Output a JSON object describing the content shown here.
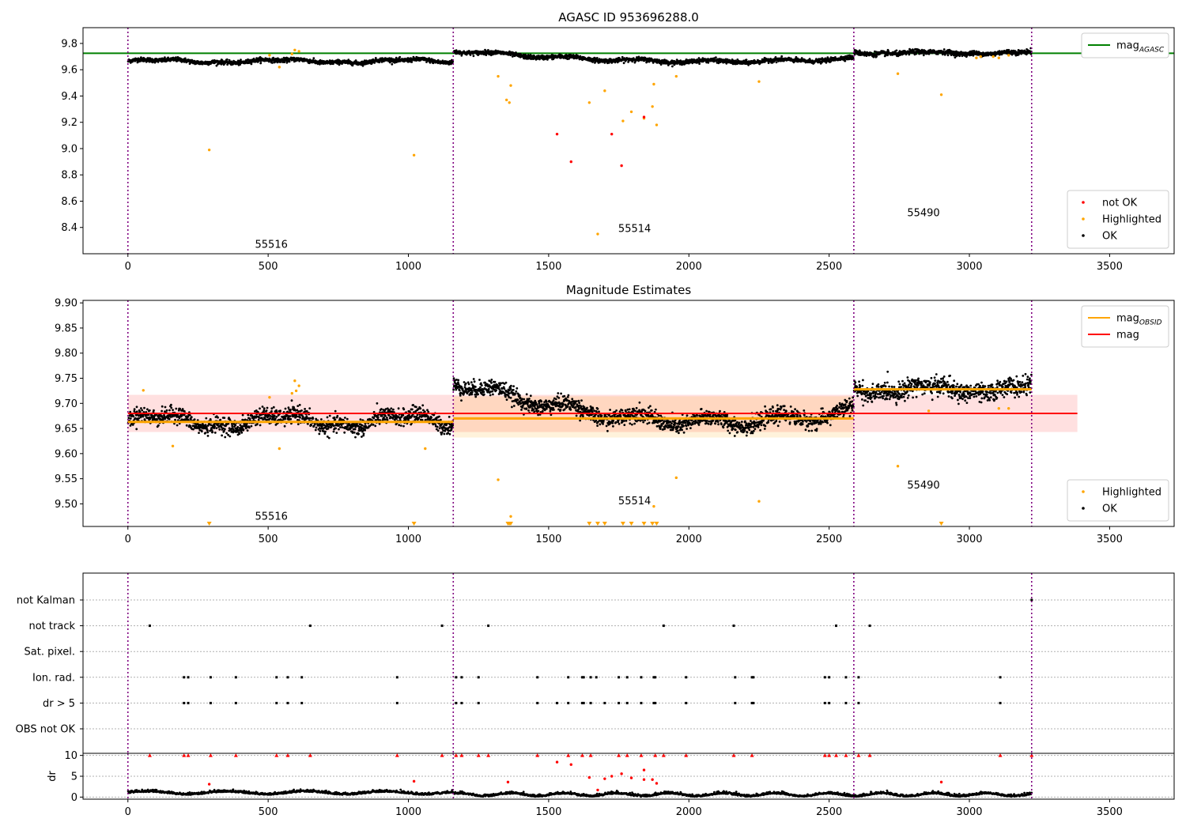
{
  "figure": {
    "background": "#ffffff"
  },
  "chart_data": [
    {
      "type": "scatter",
      "title": "AGASC ID 953696288.0",
      "xlim": [
        -160,
        3730
      ],
      "ylim": [
        8.2,
        9.92
      ],
      "xticks": [
        0,
        500,
        1000,
        1500,
        2000,
        2500,
        3000,
        3500
      ],
      "yticks": [
        8.4,
        8.6,
        8.8,
        9.0,
        9.2,
        9.4,
        9.6,
        9.8
      ],
      "ytick_decimals": 1,
      "obs_boundaries": [
        0,
        1160,
        2588,
        3222
      ],
      "obs_labels": [
        {
          "text": "55516",
          "x": 580,
          "y": 8.27
        },
        {
          "text": "55514",
          "x": 1875,
          "y": 8.39
        },
        {
          "text": "55490",
          "x": 2905,
          "y": 8.51
        }
      ],
      "hlines": [
        {
          "y": 9.725,
          "x0": -160,
          "x1": 3730,
          "color": "#008000",
          "width": 2
        }
      ],
      "ok_segments": [
        {
          "x0": 0,
          "x1": 1160,
          "level": 9.665
        },
        {
          "x0": 1160,
          "x1": 2588,
          "level": 9.67
        },
        {
          "x0": 2588,
          "x1": 3222,
          "level": 9.728
        }
      ],
      "highlighted": [
        [
          290,
          8.99
        ],
        [
          1020,
          8.95
        ],
        [
          505,
          9.71
        ],
        [
          540,
          9.62
        ],
        [
          585,
          9.72
        ],
        [
          595,
          9.75
        ],
        [
          610,
          9.74
        ],
        [
          1320,
          9.55
        ],
        [
          1350,
          9.37
        ],
        [
          1360,
          9.35
        ],
        [
          1365,
          9.48
        ],
        [
          1645,
          9.35
        ],
        [
          1675,
          8.35
        ],
        [
          1700,
          9.44
        ],
        [
          1765,
          9.21
        ],
        [
          1795,
          9.28
        ],
        [
          1840,
          9.23
        ],
        [
          1870,
          9.32
        ],
        [
          1875,
          9.49
        ],
        [
          1885,
          9.18
        ],
        [
          1955,
          9.55
        ],
        [
          2250,
          9.51
        ],
        [
          2745,
          9.57
        ],
        [
          2900,
          9.41
        ],
        [
          3025,
          9.69
        ],
        [
          3040,
          9.7
        ],
        [
          3085,
          9.7
        ],
        [
          3105,
          9.69
        ],
        [
          3140,
          9.71
        ]
      ],
      "not_ok": [
        [
          1530,
          9.11
        ],
        [
          1580,
          8.9
        ],
        [
          1725,
          9.11
        ],
        [
          1760,
          8.87
        ],
        [
          1840,
          9.24
        ]
      ],
      "legends": [
        {
          "pos": "top-right",
          "items": [
            {
              "kind": "line",
              "color": "#008000",
              "label": "mag",
              "sub": "AGASC"
            }
          ]
        },
        {
          "pos": "bottom-right",
          "items": [
            {
              "kind": "dot",
              "color": "#ff0000",
              "label": "not OK"
            },
            {
              "kind": "dot",
              "color": "#ffa500",
              "label": "Highlighted"
            },
            {
              "kind": "dot",
              "color": "#000000",
              "label": "OK"
            }
          ]
        }
      ]
    },
    {
      "type": "scatter",
      "title": "Magnitude Estimates",
      "xlim": [
        -160,
        3730
      ],
      "ylim": [
        9.455,
        9.905
      ],
      "xticks": [
        0,
        500,
        1000,
        1500,
        2000,
        2500,
        3000,
        3500
      ],
      "yticks": [
        9.5,
        9.55,
        9.6,
        9.65,
        9.7,
        9.75,
        9.8,
        9.85,
        9.9
      ],
      "ytick_decimals": 2,
      "obs_boundaries": [
        0,
        1160,
        2588,
        3222
      ],
      "obs_labels": [
        {
          "text": "55516",
          "x": 580,
          "y": 9.475
        },
        {
          "text": "55514",
          "x": 1875,
          "y": 9.505
        },
        {
          "text": "55490",
          "x": 2905,
          "y": 9.537
        }
      ],
      "bands": [
        {
          "x0": 0,
          "x1": 3385,
          "y0": 9.643,
          "y1": 9.717,
          "color": "#ff0000",
          "opacity": 0.12
        },
        {
          "x0": 1160,
          "x1": 2588,
          "y0": 9.632,
          "y1": 9.714,
          "color": "#ffa500",
          "opacity": 0.14
        }
      ],
      "hlines": [
        {
          "y": 9.68,
          "x0": 0,
          "x1": 3385,
          "color": "#ff0000",
          "width": 2
        }
      ],
      "segments": [
        {
          "x0": 0,
          "x1": 1160,
          "y": 9.663,
          "color": "#ffa500",
          "width": 3
        },
        {
          "x0": 1160,
          "x1": 2588,
          "y": 9.67,
          "color": "#ffa500",
          "width": 3
        },
        {
          "x0": 2588,
          "x1": 3222,
          "y": 9.728,
          "color": "#ffa500",
          "width": 3
        }
      ],
      "ok_segments": [
        {
          "x0": 0,
          "x1": 1160,
          "level": 9.665
        },
        {
          "x0": 1160,
          "x1": 2588,
          "level": 9.67
        },
        {
          "x0": 2588,
          "x1": 3222,
          "level": 9.728
        }
      ],
      "highlighted": [
        [
          55,
          9.726
        ],
        [
          160,
          9.615
        ],
        [
          505,
          9.712
        ],
        [
          540,
          9.61
        ],
        [
          585,
          9.72
        ],
        [
          595,
          9.745
        ],
        [
          600,
          9.725
        ],
        [
          610,
          9.735
        ],
        [
          1060,
          9.61
        ],
        [
          1320,
          9.548
        ],
        [
          1365,
          9.475
        ],
        [
          1875,
          9.495
        ],
        [
          1955,
          9.552
        ],
        [
          2250,
          9.505
        ],
        [
          2745,
          9.575
        ],
        [
          2855,
          9.685
        ],
        [
          3105,
          9.69
        ],
        [
          3140,
          9.69
        ]
      ],
      "clipped_low": [
        290,
        1020,
        1355,
        1360,
        1365,
        1645,
        1675,
        1700,
        1765,
        1795,
        1840,
        1870,
        1885,
        2900
      ],
      "not_ok": [],
      "legends": [
        {
          "pos": "top-right",
          "items": [
            {
              "kind": "line",
              "color": "#ffa500",
              "label": "mag",
              "sub": "OBSID"
            },
            {
              "kind": "line",
              "color": "#ff0000",
              "label": "mag"
            }
          ]
        },
        {
          "pos": "bottom-right",
          "items": [
            {
              "kind": "dot",
              "color": "#ffa500",
              "label": "Highlighted"
            },
            {
              "kind": "dot",
              "color": "#000000",
              "label": "OK"
            }
          ]
        }
      ]
    },
    {
      "type": "scatter",
      "title": "",
      "xlim": [
        -160,
        3730
      ],
      "xticks": [
        0,
        500,
        1000,
        1500,
        2000,
        2500,
        3000,
        3500
      ],
      "categories": [
        "not Kalman",
        "not track",
        "Sat. pixel.",
        "Ion. rad.",
        "dr > 5",
        "OBS not OK"
      ],
      "obs_boundaries": [
        0,
        1160,
        2588,
        3222
      ],
      "flags": {
        "not Kalman": [
          3222
        ],
        "not track": [
          78,
          650,
          1120,
          1285,
          1910,
          2160,
          2525,
          2645
        ],
        "Sat. pixel.": [],
        "Ion. rad.": [
          200,
          215,
          295,
          385,
          530,
          570,
          620,
          960,
          1170,
          1190,
          1250,
          1460,
          1570,
          1620,
          1625,
          1650,
          1670,
          1750,
          1780,
          1830,
          1875,
          1880,
          1990,
          2165,
          2225,
          2230,
          2485,
          2500,
          2560,
          2605,
          3110
        ],
        "dr > 5": [
          200,
          215,
          295,
          385,
          530,
          570,
          620,
          960,
          1170,
          1190,
          1250,
          1460,
          1530,
          1570,
          1620,
          1625,
          1650,
          1700,
          1750,
          1780,
          1830,
          1875,
          1880,
          1990,
          2165,
          2225,
          2230,
          2485,
          2500,
          2560,
          2605,
          3110
        ],
        "OBS not OK": []
      }
    },
    {
      "type": "scatter",
      "title": "",
      "ylabel": "dr",
      "xlim": [
        -160,
        3730
      ],
      "ylim": [
        -0.5,
        10.5
      ],
      "xticks": [
        0,
        500,
        1000,
        1500,
        2000,
        2500,
        3000,
        3500
      ],
      "yticks": [
        0,
        5,
        10
      ],
      "obs_boundaries": [
        0,
        1160,
        2588,
        3222
      ],
      "capped_at_10": [
        78,
        200,
        215,
        295,
        385,
        530,
        570,
        650,
        960,
        1120,
        1170,
        1190,
        1250,
        1285,
        1460,
        1570,
        1620,
        1650,
        1750,
        1780,
        1830,
        1880,
        1910,
        1990,
        2160,
        2225,
        2485,
        2500,
        2525,
        2560,
        2605,
        2645,
        3110,
        3222
      ],
      "red_points": [
        [
          290,
          3.1
        ],
        [
          1020,
          3.8
        ],
        [
          1355,
          3.6
        ],
        [
          1530,
          8.4
        ],
        [
          1580,
          7.8
        ],
        [
          1645,
          4.7
        ],
        [
          1675,
          1.7
        ],
        [
          1700,
          4.4
        ],
        [
          1725,
          5.0
        ],
        [
          1760,
          5.6
        ],
        [
          1795,
          4.6
        ],
        [
          1840,
          6.5
        ],
        [
          1840,
          4.2
        ],
        [
          1870,
          4.2
        ],
        [
          1885,
          3.3
        ],
        [
          2900,
          3.6
        ]
      ],
      "base_level": [
        0,
        1160,
        0.9
      ],
      "base_level_2": [
        1160,
        3222,
        0.45
      ]
    }
  ]
}
